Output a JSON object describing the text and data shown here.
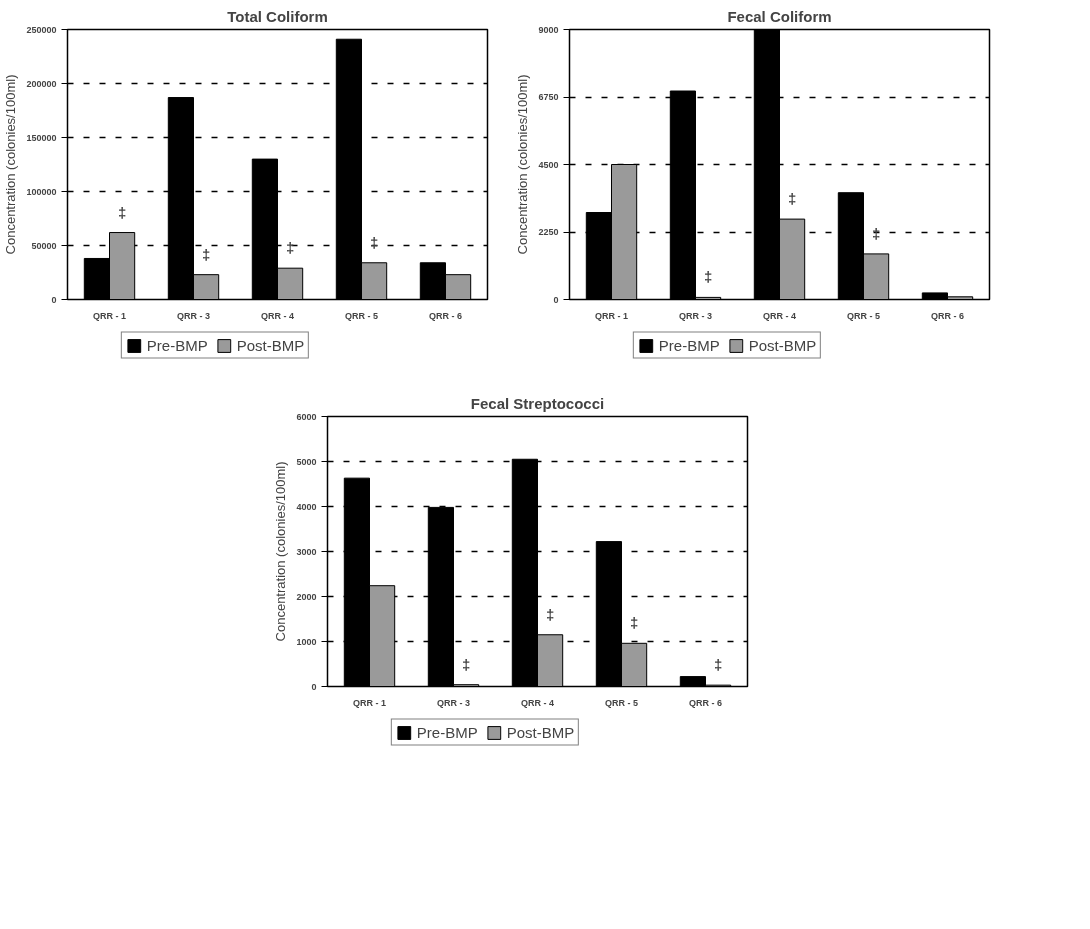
{
  "chart_data": [
    {
      "type": "bar",
      "title": "Total Coliform",
      "ylabel": "Concentration (colonies/100ml)",
      "categories": [
        "QRR - 1",
        "QRR - 3",
        "QRR - 4",
        "QRR - 5",
        "QRR - 6"
      ],
      "series": [
        {
          "name": "Pre-BMP",
          "color": "#000000",
          "values": [
            38000,
            187000,
            130000,
            241000,
            34000
          ]
        },
        {
          "name": "Post-BMP",
          "color": "#9a9a9a",
          "values": [
            62000,
            23000,
            29000,
            34000,
            23000
          ]
        }
      ],
      "ylim": [
        0,
        250000
      ],
      "yticks": [
        0,
        50000,
        100000,
        150000,
        200000,
        250000
      ],
      "grid": "y",
      "legend": "bottom",
      "annotations": [
        {
          "text": "‡",
          "x": "QRR - 1",
          "y": 62000
        },
        {
          "text": "‡",
          "x": "QRR - 3",
          "y": 23000
        },
        {
          "text": "‡",
          "x": "QRR - 4",
          "y": 29000
        },
        {
          "text": "‡",
          "x": "QRR - 5",
          "y": 34000
        }
      ]
    },
    {
      "type": "bar",
      "title": "Fecal Coliform",
      "ylabel": "Concentration (colonies/100ml)",
      "categories": [
        "QRR - 1",
        "QRR - 3",
        "QRR - 4",
        "QRR - 5",
        "QRR - 6"
      ],
      "series": [
        {
          "name": "Pre-BMP",
          "color": "#000000",
          "values": [
            2900,
            6950,
            9000,
            3560,
            220
          ]
        },
        {
          "name": "Post-BMP",
          "color": "#9a9a9a",
          "values": [
            4500,
            70,
            2680,
            1520,
            90
          ]
        }
      ],
      "ylim": [
        0,
        9000
      ],
      "yticks": [
        0,
        2250,
        4500,
        6750,
        9000
      ],
      "grid": "y",
      "legend": "bottom",
      "annotations": [
        {
          "text": "‡",
          "x": "QRR - 3",
          "y": 70
        },
        {
          "text": "‡",
          "x": "QRR - 4",
          "y": 2680
        },
        {
          "text": "‡",
          "x": "QRR - 5",
          "y": 1520
        }
      ]
    },
    {
      "type": "bar",
      "title": "Fecal Streptococci",
      "ylabel": "Concentration (colonies/100ml)",
      "categories": [
        "QRR - 1",
        "QRR - 3",
        "QRR - 4",
        "QRR - 5",
        "QRR - 6"
      ],
      "series": [
        {
          "name": "Pre-BMP",
          "color": "#000000",
          "values": [
            4630,
            3980,
            5050,
            3220,
            220
          ]
        },
        {
          "name": "Post-BMP",
          "color": "#9a9a9a",
          "values": [
            2240,
            40,
            1150,
            960,
            30
          ]
        }
      ],
      "ylim": [
        0,
        6000
      ],
      "yticks": [
        0,
        1000,
        2000,
        3000,
        4000,
        5000,
        6000
      ],
      "grid": "y",
      "legend": "bottom",
      "annotations": [
        {
          "text": "‡",
          "x": "QRR - 3",
          "y": 40
        },
        {
          "text": "‡",
          "x": "QRR - 4",
          "y": 1150
        },
        {
          "text": "‡",
          "x": "QRR - 5",
          "y": 960
        },
        {
          "text": "‡",
          "x": "QRR - 6",
          "y": 30
        }
      ]
    }
  ]
}
